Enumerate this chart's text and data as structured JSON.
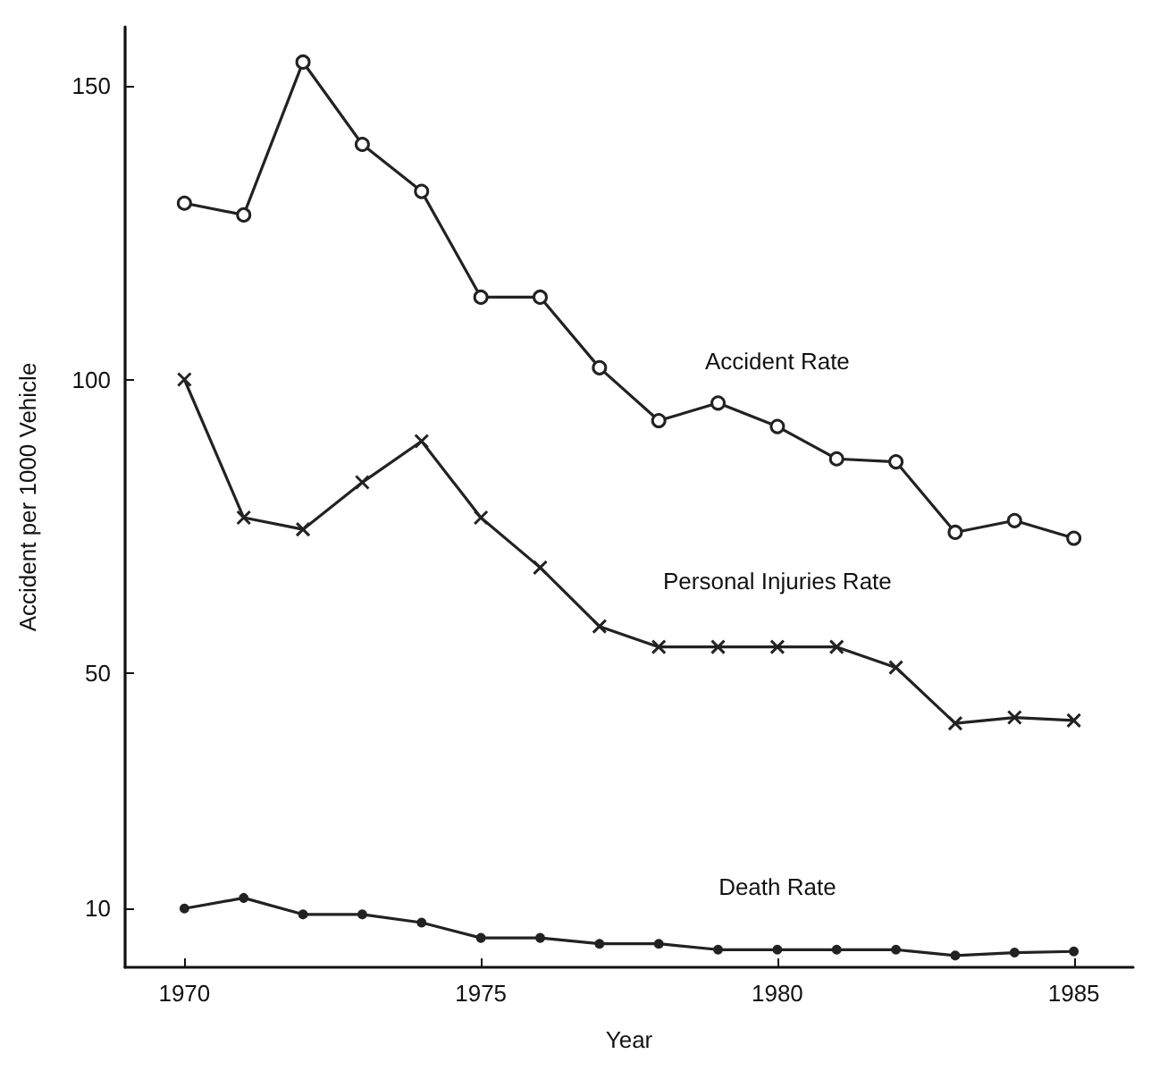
{
  "chart_data": {
    "type": "line",
    "xlabel": "Year",
    "ylabel": "Accident per 1000 Vehicle",
    "x": [
      1970,
      1971,
      1972,
      1973,
      1974,
      1975,
      1976,
      1977,
      1978,
      1979,
      1980,
      1981,
      1982,
      1983,
      1984,
      1985
    ],
    "series": [
      {
        "name": "Accident Rate",
        "color": "#222222",
        "marker": "circle",
        "values": [
          130,
          128,
          154,
          140,
          132,
          114,
          114,
          102,
          93,
          96,
          92,
          86.5,
          86,
          74,
          76,
          73
        ]
      },
      {
        "name": "Personal Injuries Rate",
        "color": "#222222",
        "marker": "cross",
        "values": [
          100,
          76.5,
          74.5,
          82.5,
          89.5,
          76.5,
          68,
          58,
          54.5,
          54.5,
          54.5,
          54.5,
          51,
          41.5,
          42.5,
          42
        ]
      },
      {
        "name": "Death Rate",
        "color": "#222222",
        "marker": "dot",
        "values": [
          10,
          11.8,
          9,
          9,
          7.6,
          5,
          5,
          4,
          4,
          3,
          3,
          3,
          3,
          2,
          2.5,
          2.7
        ]
      }
    ],
    "xlim": [
      1969,
      1986
    ],
    "xticks": [
      1970,
      1975,
      1980,
      1985
    ],
    "ylim": [
      0,
      160
    ],
    "yticks": [
      10,
      50,
      100,
      150
    ],
    "grid": false,
    "legend": false,
    "line_style": "solid"
  }
}
